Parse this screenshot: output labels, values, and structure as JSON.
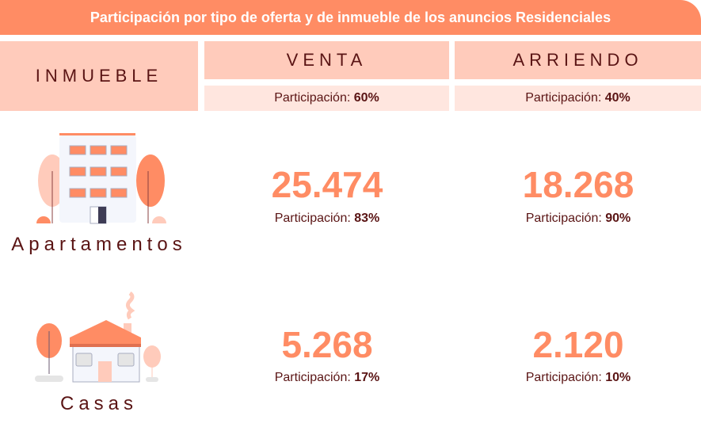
{
  "title": "Participación por tipo de oferta y de inmueble de los anuncios Residenciales",
  "header": {
    "inmueble": "INMUEBLE",
    "venta": "VENTA",
    "arriendo": "ARRIENDO",
    "part_label": "Participación:",
    "venta_share": "60%",
    "arriendo_share": "40%"
  },
  "rows": [
    {
      "label": "Apartamentos",
      "icon": "apartment-building-icon",
      "venta": {
        "value": "25.474",
        "share": "83%"
      },
      "arriendo": {
        "value": "18.268",
        "share": "90%"
      }
    },
    {
      "label": "Casas",
      "icon": "house-icon",
      "venta": {
        "value": "5.268",
        "share": "17%"
      },
      "arriendo": {
        "value": "2.120",
        "share": "10%"
      }
    }
  ],
  "colors": {
    "accent": "#ff8c64",
    "header_cell": "#ffcbbb",
    "sub_cell": "#ffe6df",
    "text": "#5a1414"
  }
}
